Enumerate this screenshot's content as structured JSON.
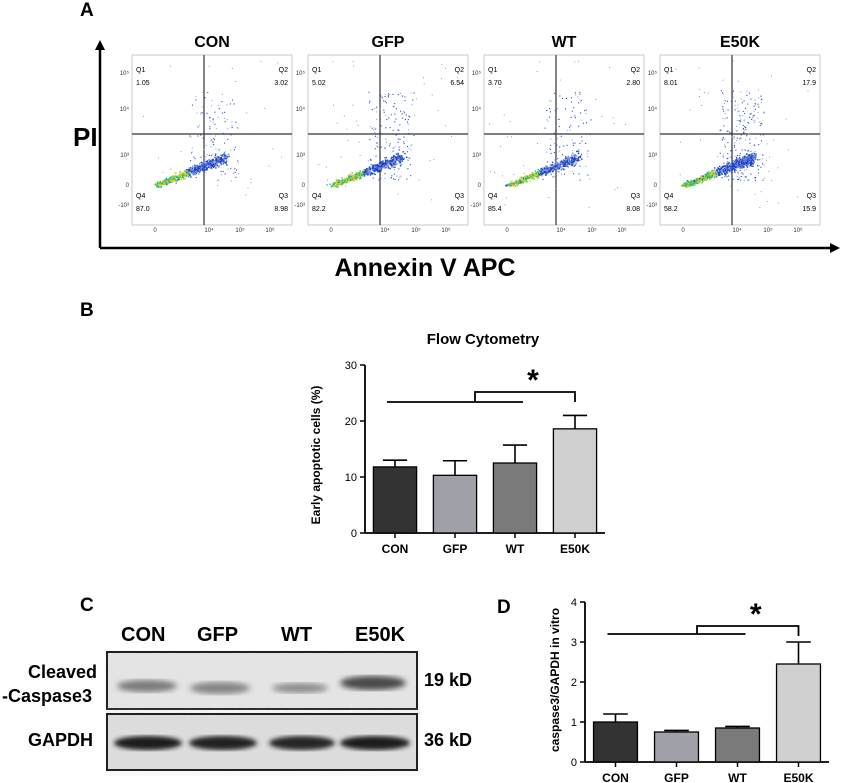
{
  "panel_a": {
    "letter": "A",
    "y_axis_label": "PI",
    "x_axis_label": "Annexin V APC",
    "quadrant_labels": [
      "Q1",
      "Q2",
      "Q3",
      "Q4"
    ],
    "plots": [
      {
        "title": "CON",
        "q1": "1.05",
        "q2": "3.02",
        "q3": "8.98",
        "q4": "87.0"
      },
      {
        "title": "GFP",
        "q1": "5.02",
        "q2": "6.54",
        "q3": "6.20",
        "q4": "82.2"
      },
      {
        "title": "WT",
        "q1": "3.70",
        "q2": "2.80",
        "q3": "8.08",
        "q4": "85.4"
      },
      {
        "title": "E50K",
        "q1": "8.01",
        "q2": "17.9",
        "q3": "15.9",
        "q4": "58.2"
      }
    ]
  },
  "panel_b": {
    "letter": "B",
    "significance": "*",
    "chart_data": {
      "type": "bar",
      "title": "Flow Cytometry",
      "categories": [
        "CON",
        "GFP",
        "WT",
        "E50K"
      ],
      "values": [
        11.8,
        10.3,
        12.5,
        18.6
      ],
      "errors": [
        1.2,
        2.6,
        3.2,
        2.4
      ],
      "colors": [
        "#333333",
        "#a0a0a8",
        "#7a7a7a",
        "#d0d0d0"
      ],
      "ylabel": "Early apoptotic cells (%)",
      "ylim": [
        0,
        30
      ],
      "yticks": [
        "0",
        "10",
        "20",
        "30"
      ]
    }
  },
  "panel_c": {
    "letter": "C",
    "lanes": [
      "CON",
      "GFP",
      "WT",
      "E50K"
    ],
    "rows": [
      {
        "label_line1": "Cleaved",
        "label_line2": "-Caspase3",
        "size": "19 kD"
      },
      {
        "label_line1": "GAPDH",
        "label_line2": "",
        "size": "36 kD"
      }
    ]
  },
  "panel_d": {
    "letter": "D",
    "significance": "*",
    "chart_data": {
      "type": "bar",
      "categories": [
        "CON",
        "GFP",
        "WT",
        "E50K"
      ],
      "values": [
        1.0,
        0.75,
        0.85,
        2.45
      ],
      "errors": [
        0.2,
        0.04,
        0.04,
        0.55
      ],
      "colors": [
        "#333333",
        "#a0a0a8",
        "#7a7a7a",
        "#d0d0d0"
      ],
      "ylabel": "caspase3/GAPDH in vitro",
      "ylim": [
        0,
        4
      ],
      "yticks": [
        "0",
        "1",
        "2",
        "3",
        "4"
      ]
    }
  }
}
